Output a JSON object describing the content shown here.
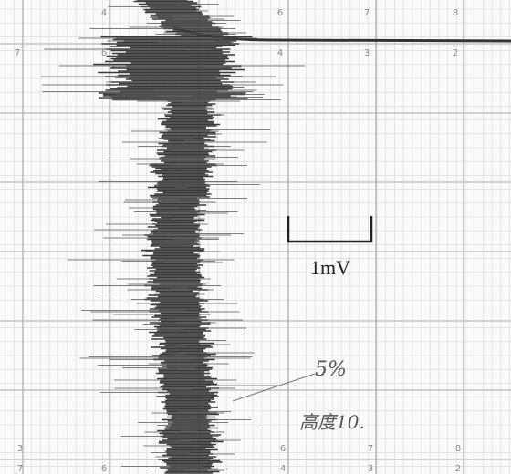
{
  "scale_bar": {
    "label": "1mV"
  },
  "annotations": {
    "percent": "5%",
    "note": "高度10."
  },
  "grid_labels": {
    "top_row_1": [
      "4",
      "6",
      "7",
      "8"
    ],
    "top_row_2": [
      "7",
      "6",
      "4",
      "3",
      "2"
    ],
    "bottom_row_1": [
      "3",
      "6",
      "7",
      "8"
    ],
    "bottom_row_2": [
      "7",
      "6",
      "4",
      "3",
      "2"
    ]
  }
}
